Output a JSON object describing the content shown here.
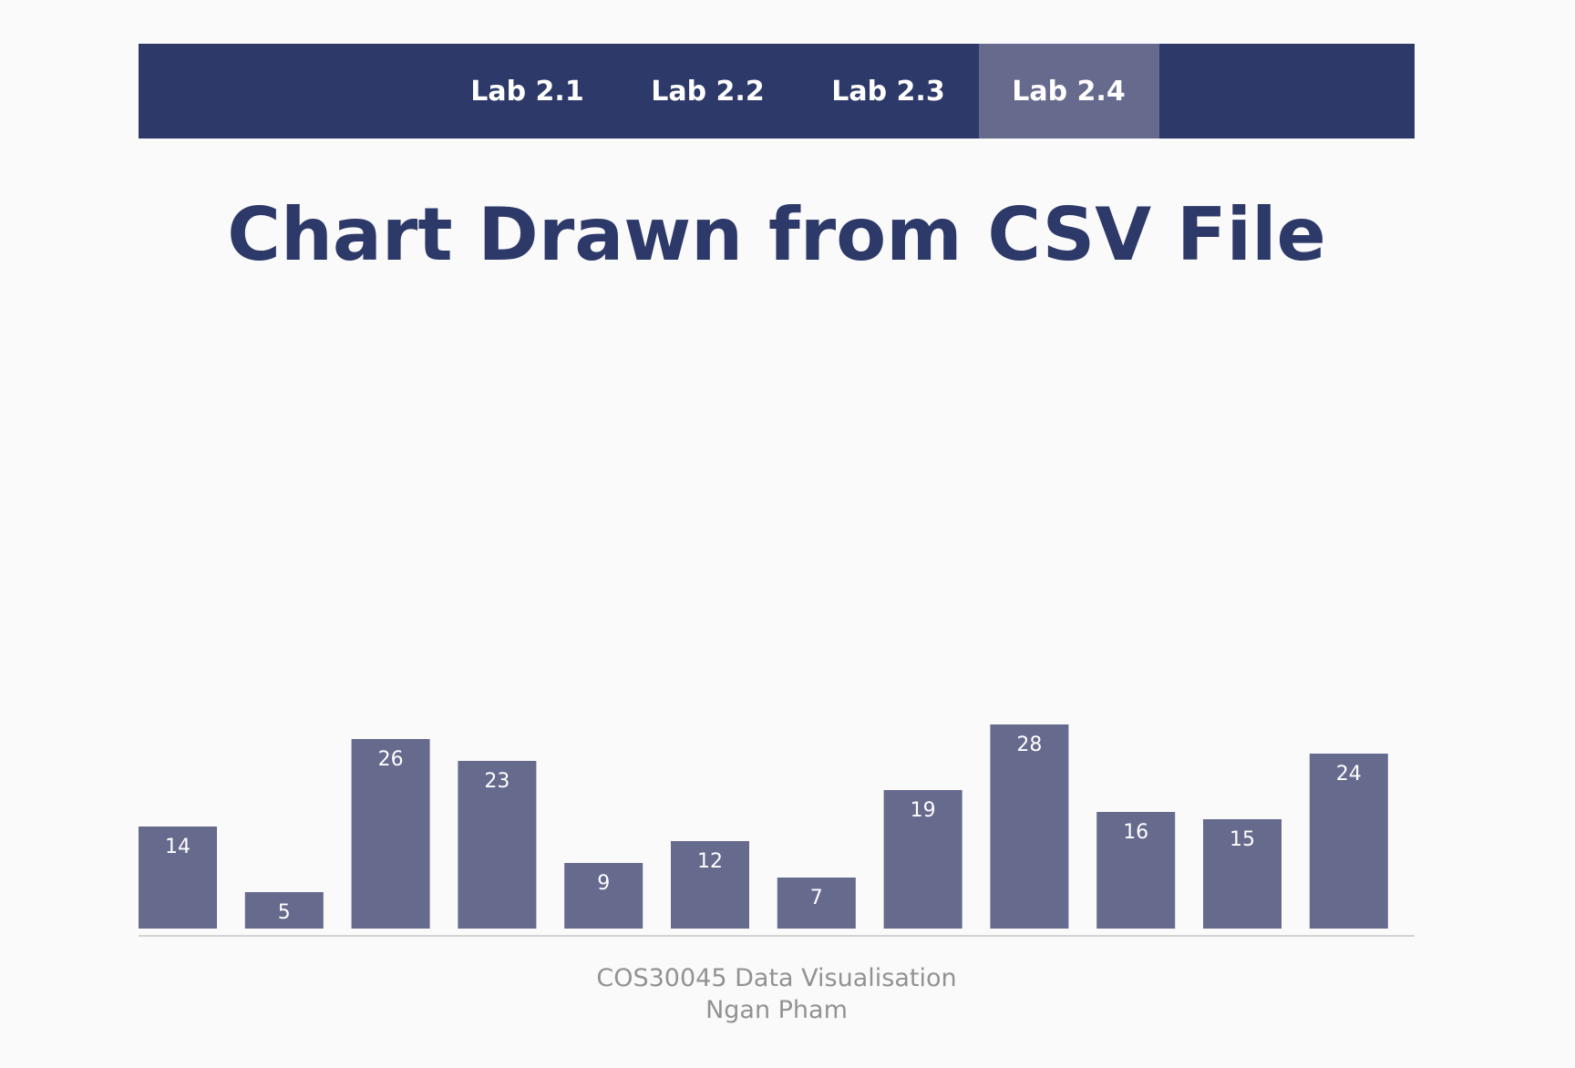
{
  "nav": {
    "items": [
      {
        "label": "Lab 2.1",
        "active": false
      },
      {
        "label": "Lab 2.2",
        "active": false
      },
      {
        "label": "Lab 2.3",
        "active": false
      },
      {
        "label": "Lab 2.4",
        "active": true
      }
    ]
  },
  "page": {
    "title": "Chart Drawn from CSV File"
  },
  "footer": {
    "course": "COS30045 Data Visualisation",
    "author": "Ngan Pham"
  },
  "colors": {
    "primary": "#2d3a69",
    "bar": "#666a8d",
    "active_tab": "#666a8d",
    "footer_text": "#929292",
    "background": "#fafafa"
  },
  "chart_data": {
    "type": "bar",
    "values": [
      14,
      5,
      26,
      23,
      9,
      12,
      7,
      19,
      28,
      16,
      15,
      24
    ],
    "title": "",
    "xlabel": "",
    "ylabel": ""
  }
}
